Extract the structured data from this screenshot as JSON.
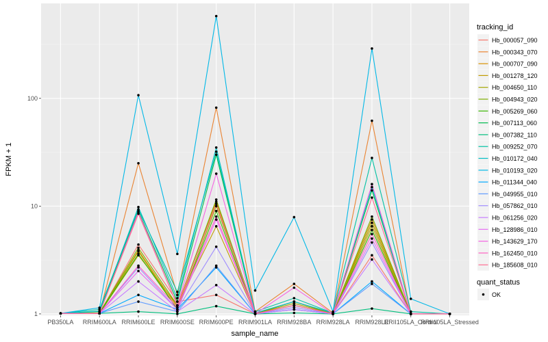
{
  "chart_data": {
    "type": "line",
    "xlabel": "sample_name",
    "ylabel": "FPKM + 1",
    "y_scale": "log10",
    "ylim": [
      0.97,
      760
    ],
    "y_ticks": [
      {
        "value": 1,
        "label": "1"
      },
      {
        "value": 10,
        "label": "10"
      },
      {
        "value": 100,
        "label": "100"
      }
    ],
    "categories": [
      "PB350LA",
      "RRIM600LA",
      "RRIM600LE",
      "RRIM600SE",
      "RRIM600PE",
      "RRIM901LA",
      "RRIM928BA",
      "RRIM928LA",
      "RRIM928LE",
      "RRII105LA_Control",
      "RRII105LA_Stressed"
    ],
    "grid": true,
    "background": "#ebebeb",
    "legend": {
      "title": "tracking_id",
      "position": "right",
      "status_title": "quant_status",
      "status_items": [
        {
          "label": "OK",
          "color": "#000000"
        }
      ]
    },
    "series": [
      {
        "name": "Hb_000057_090",
        "color": "#F8766D",
        "values": [
          1.01,
          1.01,
          4.4,
          1.3,
          1.5,
          1.0,
          1.3,
          1.0,
          3.5,
          1.0,
          1.0
        ]
      },
      {
        "name": "Hb_000343_070",
        "color": "#EA8331",
        "values": [
          1.01,
          1.01,
          25,
          1.5,
          82,
          1.05,
          1.9,
          1.02,
          62,
          1.0,
          1.0
        ]
      },
      {
        "name": "Hb_000707_090",
        "color": "#D89000",
        "values": [
          1.01,
          1.01,
          3.9,
          1.15,
          11.0,
          1.0,
          1.2,
          1.0,
          7.5,
          1.0,
          1.0
        ]
      },
      {
        "name": "Hb_001278_120",
        "color": "#C09B00",
        "values": [
          1.01,
          1.01,
          3.5,
          1.2,
          6.5,
          1.0,
          1.2,
          1.0,
          6.5,
          1.0,
          1.0
        ]
      },
      {
        "name": "Hb_004650_110",
        "color": "#A3A500",
        "values": [
          1.01,
          1.01,
          3.8,
          1.1,
          10.0,
          1.0,
          1.25,
          1.0,
          7.0,
          1.0,
          1.0
        ]
      },
      {
        "name": "Hb_004943_020",
        "color": "#7CAE00",
        "values": [
          1.01,
          1.02,
          4.1,
          1.2,
          11.5,
          1.0,
          1.3,
          1.0,
          8.0,
          1.0,
          1.0
        ]
      },
      {
        "name": "Hb_005269_060",
        "color": "#39B600",
        "values": [
          1.01,
          1.01,
          3.6,
          1.1,
          9.0,
          1.0,
          1.2,
          1.0,
          6.0,
          1.0,
          1.0
        ]
      },
      {
        "name": "Hb_007113_060",
        "color": "#00BB4E",
        "values": [
          1.01,
          1.05,
          9.0,
          1.3,
          30,
          1.0,
          1.2,
          1.0,
          14,
          1.0,
          1.0
        ]
      },
      {
        "name": "Hb_007382_110",
        "color": "#00BF7D",
        "values": [
          1.01,
          1.01,
          1.05,
          1.0,
          1.18,
          1.0,
          1.02,
          1.0,
          1.12,
          1.0,
          1.0
        ]
      },
      {
        "name": "Hb_009252_070",
        "color": "#00C1A3",
        "values": [
          1.01,
          1.1,
          9.3,
          1.6,
          32,
          1.05,
          1.4,
          1.02,
          28,
          1.05,
          1.0
        ]
      },
      {
        "name": "Hb_010172_040",
        "color": "#00BFC4",
        "values": [
          1.01,
          1.06,
          9.8,
          1.4,
          35,
          1.02,
          1.3,
          1.02,
          15,
          1.0,
          1.0
        ]
      },
      {
        "name": "Hb_010193_020",
        "color": "#00B8E7",
        "values": [
          1.01,
          1.14,
          107,
          3.6,
          580,
          1.65,
          7.9,
          1.05,
          290,
          1.38,
          1.0
        ]
      },
      {
        "name": "Hb_011344_040",
        "color": "#00A9FF",
        "values": [
          1.01,
          1.01,
          1.5,
          1.1,
          2.7,
          1.0,
          1.1,
          1.0,
          2.0,
          1.0,
          1.0
        ]
      },
      {
        "name": "Hb_049955_010",
        "color": "#619CFF",
        "values": [
          1.01,
          1.01,
          1.3,
          1.05,
          2.8,
          1.0,
          1.1,
          1.0,
          1.9,
          1.0,
          1.0
        ]
      },
      {
        "name": "Hb_057862_010",
        "color": "#9F8CFF",
        "values": [
          1.01,
          1.01,
          2.7,
          1.1,
          4.2,
          1.0,
          1.15,
          1.0,
          4.6,
          1.0,
          1.0
        ]
      },
      {
        "name": "Hb_061256_020",
        "color": "#C77CFF",
        "values": [
          1.01,
          1.01,
          2.0,
          1.05,
          1.85,
          1.0,
          1.1,
          1.0,
          3.2,
          1.0,
          1.0
        ]
      },
      {
        "name": "Hb_128986_010",
        "color": "#E76BF3",
        "values": [
          1.01,
          1.01,
          2.5,
          1.1,
          7.5,
          1.0,
          1.2,
          1.0,
          5.0,
          1.0,
          1.0
        ]
      },
      {
        "name": "Hb_143629_170",
        "color": "#F564E3",
        "values": [
          1.01,
          1.01,
          8.8,
          1.2,
          20,
          1.0,
          1.75,
          1.0,
          16,
          1.0,
          1.0
        ]
      },
      {
        "name": "Hb_162450_010",
        "color": "#FF61C3",
        "values": [
          1.01,
          1.01,
          2.8,
          1.15,
          8.0,
          1.0,
          1.2,
          1.0,
          5.5,
          1.0,
          1.0
        ]
      },
      {
        "name": "Hb_185608_010",
        "color": "#FF6C91",
        "values": [
          1.01,
          1.01,
          8.5,
          1.2,
          10.5,
          1.0,
          1.2,
          1.0,
          12,
          1.0,
          1.0
        ]
      }
    ]
  }
}
